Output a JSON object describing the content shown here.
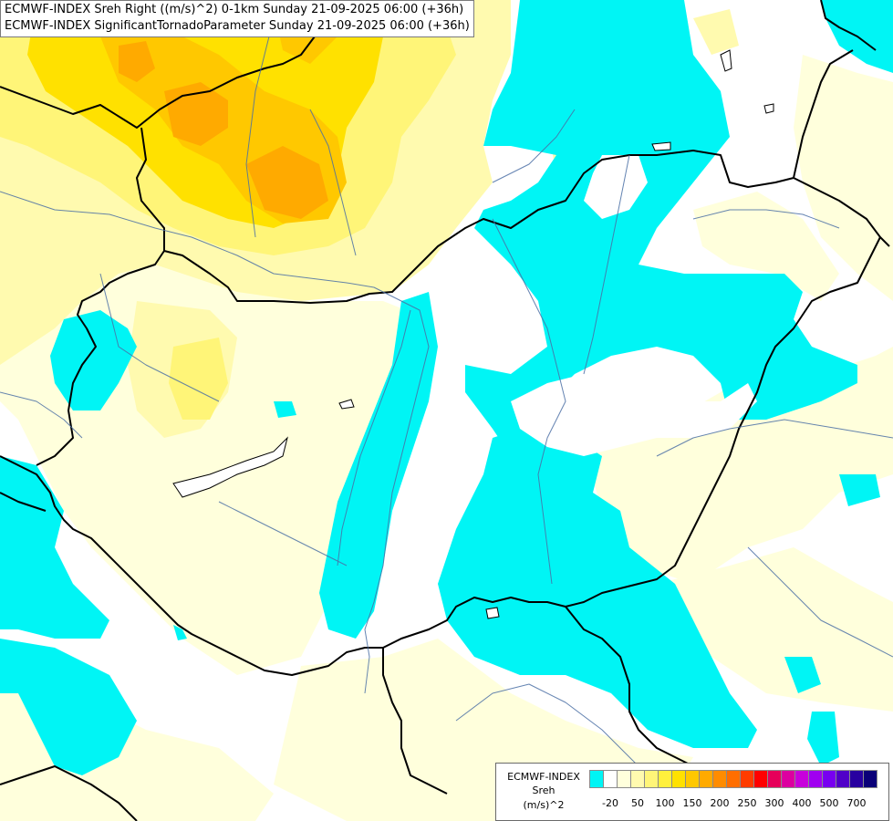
{
  "title": {
    "line1": "ECMWF-INDEX Sreh Right ((m/s)^2) 0-1km Sunday 21-09-2025 06:00 (+36h)",
    "line2": "ECMWF-INDEX SignificantTornadoParameter Sunday 21-09-2025 06:00 (+36h)"
  },
  "legend": {
    "label_line1": "ECMWF-INDEX",
    "label_line2": "Sreh",
    "label_line3": "(m/s)^2",
    "colors": [
      "#00f5f5",
      "#ffffff",
      "#ffffdc",
      "#fffaaf",
      "#fff578",
      "#fff03c",
      "#ffe100",
      "#ffc800",
      "#ffaa00",
      "#ff8c00",
      "#ff6e00",
      "#ff3c00",
      "#ff0000",
      "#e6005a",
      "#dc00a0",
      "#c800dc",
      "#a000f0",
      "#7800f0",
      "#5000c8",
      "#2800a0",
      "#0a0078"
    ],
    "ticks": [
      "-20",
      "50",
      "100",
      "150",
      "200",
      "250",
      "300",
      "400",
      "500",
      "700"
    ]
  },
  "map": {
    "palette": {
      "cyan": "#00f5f5",
      "pale_yellow": "#ffffdc",
      "light_yellow": "#fffaaf",
      "yellow": "#fff578",
      "gold": "#ffe100",
      "orange": "#ffc800",
      "dark_orange": "#ffaa00",
      "border": "#000000",
      "river": "#4a6fa5"
    }
  }
}
